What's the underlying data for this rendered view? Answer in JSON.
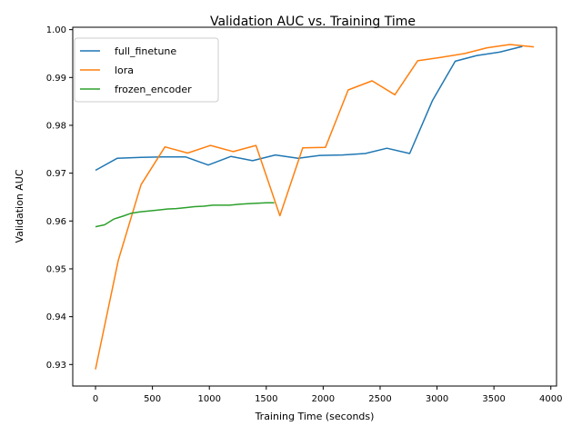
{
  "chart_data": {
    "type": "line",
    "title": "Validation AUC vs. Training Time",
    "xlabel": "Training Time (seconds)",
    "ylabel": "Validation AUC",
    "xlim": [
      -200,
      4050
    ],
    "ylim": [
      0.9255,
      1.0005
    ],
    "xticks": [
      0,
      500,
      1000,
      1500,
      2000,
      2500,
      3000,
      3500,
      4000
    ],
    "xtick_labels": [
      "0",
      "500",
      "1000",
      "1500",
      "2000",
      "2500",
      "3000",
      "3500",
      "4000"
    ],
    "yticks": [
      0.93,
      0.94,
      0.95,
      0.96,
      0.97,
      0.98,
      0.99,
      1.0
    ],
    "ytick_labels": [
      "0.93",
      "0.94",
      "0.95",
      "0.96",
      "0.97",
      "0.98",
      "0.99",
      "1.00"
    ],
    "grid": false,
    "legend_position": "upper-left",
    "series": [
      {
        "name": "full_finetune",
        "color": "#1f77b4",
        "x": [
          0,
          190,
          400,
          590,
          790,
          990,
          1190,
          1380,
          1580,
          1780,
          1970,
          2170,
          2370,
          2560,
          2760,
          2960,
          3160,
          3350,
          3550,
          3750
        ],
        "y": [
          0.9706,
          0.9731,
          0.9733,
          0.9734,
          0.9734,
          0.9717,
          0.9735,
          0.9726,
          0.9738,
          0.9731,
          0.9737,
          0.9738,
          0.9741,
          0.9752,
          0.9741,
          0.9852,
          0.9934,
          0.9946,
          0.9953,
          0.9965
        ]
      },
      {
        "name": "lora",
        "color": "#ff7f0e",
        "x": [
          0,
          200,
          400,
          610,
          810,
          1010,
          1210,
          1410,
          1620,
          1820,
          2020,
          2220,
          2430,
          2630,
          2830,
          3030,
          3240,
          3440,
          3640,
          3850
        ],
        "y": [
          0.929,
          0.9518,
          0.9676,
          0.9755,
          0.9742,
          0.9758,
          0.9745,
          0.9758,
          0.9611,
          0.9753,
          0.9754,
          0.9874,
          0.9893,
          0.9864,
          0.9935,
          0.9942,
          0.995,
          0.9962,
          0.9969,
          0.9964
        ]
      },
      {
        "name": "frozen_encoder",
        "color": "#2ca02c",
        "x": [
          0,
          80,
          160,
          240,
          310,
          390,
          470,
          550,
          630,
          710,
          790,
          870,
          950,
          1030,
          1110,
          1180,
          1260,
          1340,
          1420,
          1500,
          1570
        ],
        "y": [
          0.9588,
          0.9592,
          0.9604,
          0.961,
          0.9616,
          0.9619,
          0.9621,
          0.9623,
          0.9625,
          0.9626,
          0.9628,
          0.963,
          0.9631,
          0.9633,
          0.9633,
          0.9633,
          0.9635,
          0.9636,
          0.9637,
          0.9638,
          0.9638
        ]
      }
    ]
  }
}
